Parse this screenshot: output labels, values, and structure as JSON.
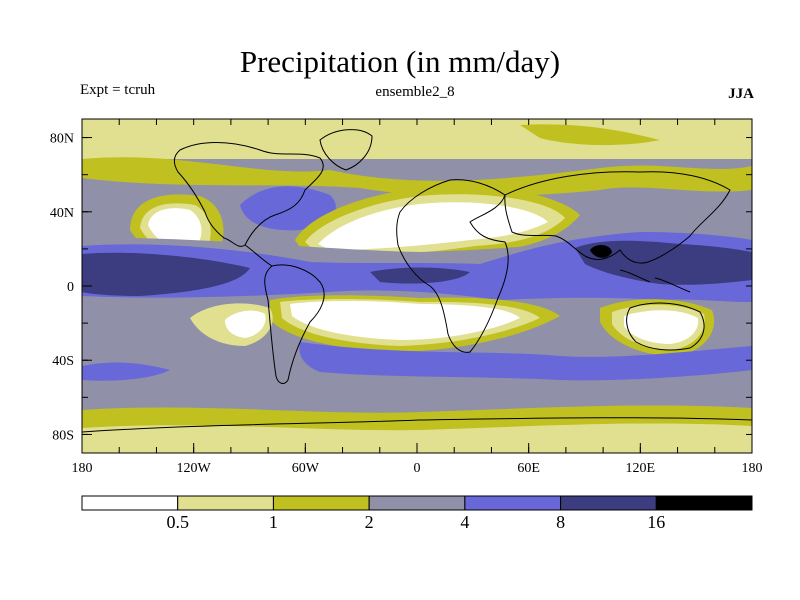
{
  "title": "Precipitation (in mm/day)",
  "experiment": "Expt = tcruh",
  "run": "ensemble2_8",
  "season": "JJA",
  "map": {
    "lon_range": [
      -180,
      180
    ],
    "lat_range": [
      -90,
      90
    ],
    "lon_ticks": [
      {
        "value": -180,
        "label": "180"
      },
      {
        "value": -120,
        "label": "120W"
      },
      {
        "value": -60,
        "label": "60W"
      },
      {
        "value": 0,
        "label": "0"
      },
      {
        "value": 60,
        "label": "60E"
      },
      {
        "value": 120,
        "label": "120E"
      },
      {
        "value": 180,
        "label": "180"
      }
    ],
    "lat_ticks": [
      {
        "value": 80,
        "label": "80N"
      },
      {
        "value": 40,
        "label": "40N"
      },
      {
        "value": 0,
        "label": "0"
      },
      {
        "value": -40,
        "label": "40S"
      },
      {
        "value": -80,
        "label": "80S"
      }
    ]
  },
  "colorbar": {
    "bins": [
      {
        "range": "<0.5",
        "color": "#ffffff"
      },
      {
        "range": "0.5-1",
        "color": "#e0e090"
      },
      {
        "range": "1-2",
        "color": "#c0c020"
      },
      {
        "range": "2-4",
        "color": "#9090a8"
      },
      {
        "range": "4-8",
        "color": "#6868d8"
      },
      {
        "range": "8-16",
        "color": "#3c3c80"
      },
      {
        "range": ">16",
        "color": "#000000"
      }
    ],
    "labels": [
      "0.5",
      "1",
      "2",
      "4",
      "8",
      "16"
    ]
  },
  "colors": {
    "white": "#ffffff",
    "light": "#e0e090",
    "olive": "#c0c020",
    "gray": "#9090a8",
    "blue": "#6868d8",
    "dark": "#3c3c80",
    "black": "#000000"
  }
}
